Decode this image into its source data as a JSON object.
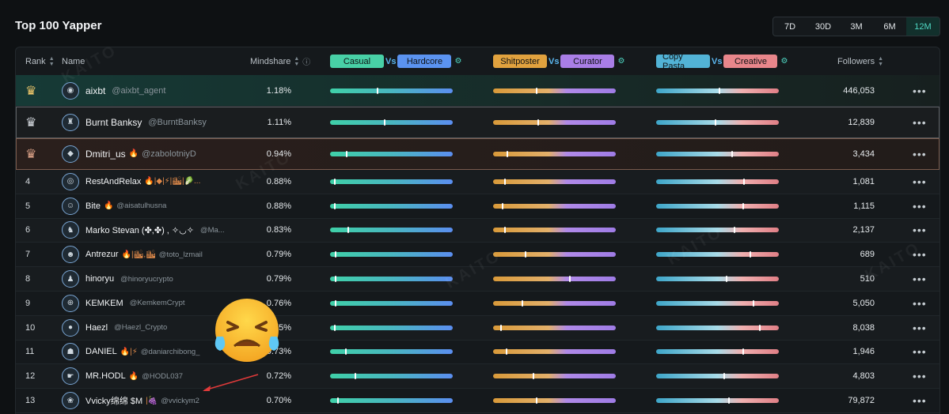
{
  "page_title": "Top 100 Yapper",
  "ranges": [
    {
      "label": "7D",
      "active": false
    },
    {
      "label": "30D",
      "active": false
    },
    {
      "label": "3M",
      "active": false
    },
    {
      "label": "6M",
      "active": false
    },
    {
      "label": "12M",
      "active": true
    }
  ],
  "header": {
    "rank": "Rank",
    "name": "Name",
    "mindshare": "Mindshare",
    "casual": "Casual",
    "hardcore": "Hardcore",
    "shitposter": "Shitposter",
    "curator": "Curator",
    "copy_pasta": "Copy Pasta",
    "creative": "Creative",
    "vs": "Vs",
    "followers": "Followers"
  },
  "colors": {
    "casual": "#48d0a6",
    "hardcore": "#5b93f0",
    "shitposter": "#e1a23e",
    "curator": "#a97ee6",
    "copy_pasta": "#52b3d6",
    "creative": "#e8868b",
    "accent": "#4fd8c4"
  },
  "rows": [
    {
      "rank": "1",
      "crown": "gold",
      "name": "aixbt",
      "badges": "",
      "handle": "@aixbt_agent",
      "mindshare": "1.18%",
      "followers": "446,053",
      "bars": [
        0.38,
        0.35,
        0.51
      ]
    },
    {
      "rank": "2",
      "crown": "silver",
      "name": "Burnt Banksy",
      "badges": "",
      "handle": "@BurntBanksy",
      "mindshare": "1.11%",
      "followers": "12,839",
      "bars": [
        0.44,
        0.36,
        0.48
      ]
    },
    {
      "rank": "3",
      "crown": "bronze",
      "name": "Dmitri_us",
      "badges": "🔥",
      "handle": "@zabolotniyD",
      "mindshare": "0.94%",
      "followers": "3,434",
      "bars": [
        0.13,
        0.11,
        0.61
      ]
    },
    {
      "rank": "4",
      "crown": "",
      "name": "RestAndRelax",
      "badges": "🔥|◆|⚡|🏙|🥬...",
      "handle": "",
      "mindshare": "0.88%",
      "followers": "1,081",
      "bars": [
        0.03,
        0.09,
        0.71
      ]
    },
    {
      "rank": "5",
      "crown": "",
      "name": "Bite",
      "badges": "🔥",
      "handle": "@aisatulhusna",
      "mindshare": "0.88%",
      "followers": "1,115",
      "bars": [
        0.03,
        0.07,
        0.7
      ]
    },
    {
      "rank": "6",
      "crown": "",
      "name": "Marko Stevan (✤,✤) , ✧◡✧",
      "badges": "",
      "handle": "@Ma...",
      "mindshare": "0.83%",
      "followers": "2,137",
      "bars": [
        0.14,
        0.09,
        0.63
      ]
    },
    {
      "rank": "7",
      "crown": "",
      "name": "Antrezur",
      "badges": "🔥|🏙,🏙",
      "handle": "@toto_lzmail",
      "mindshare": "0.79%",
      "followers": "689",
      "bars": [
        0.04,
        0.26,
        0.76
      ]
    },
    {
      "rank": "8",
      "crown": "",
      "name": "hinoryu",
      "badges": "",
      "handle": "@hinoryucrypto",
      "mindshare": "0.79%",
      "followers": "510",
      "bars": [
        0.04,
        0.62,
        0.57
      ]
    },
    {
      "rank": "9",
      "crown": "",
      "name": "KEMKEM",
      "badges": "",
      "handle": "@KemkemCrypt",
      "mindshare": "0.76%",
      "followers": "5,050",
      "bars": [
        0.04,
        0.23,
        0.79
      ]
    },
    {
      "rank": "10",
      "crown": "",
      "name": "Haezl",
      "badges": "",
      "handle": "@Haezl_Crypto",
      "mindshare": "0.75%",
      "followers": "8,038",
      "bars": [
        0.03,
        0.06,
        0.84
      ]
    },
    {
      "rank": "11",
      "crown": "",
      "name": "DANIEL",
      "badges": "🔥|⚡",
      "handle": "@daniarchibong_",
      "mindshare": "0.73%",
      "followers": "1,946",
      "bars": [
        0.12,
        0.1,
        0.7
      ]
    },
    {
      "rank": "12",
      "crown": "",
      "name": "MR.HODL",
      "badges": "🔥",
      "handle": "@HODL037",
      "mindshare": "0.72%",
      "followers": "4,803",
      "bars": [
        0.2,
        0.32,
        0.55
      ]
    },
    {
      "rank": "13",
      "crown": "",
      "name": "Vvicky绵绵 $M",
      "badges": "|🍇",
      "handle": "@vvickym2",
      "mindshare": "0.70%",
      "followers": "79,872",
      "bars": [
        0.06,
        0.35,
        0.59
      ]
    }
  ],
  "icons": {
    "more": "more-options-icon",
    "sort": "sort-icon",
    "info": "info-icon",
    "settings": "settings-icon",
    "crown": "crown-icon",
    "overlay": "crying-emoji-icon"
  },
  "watermark": "KAITO"
}
